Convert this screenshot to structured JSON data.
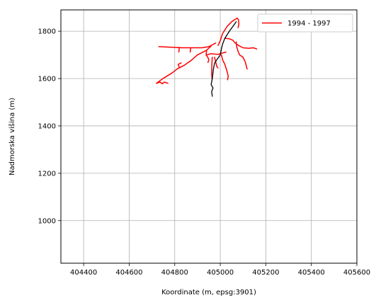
{
  "chart_data": {
    "type": "line",
    "xlabel": "Koordinate (m, epsg:3901)",
    "ylabel": "Nadmorska višina (m)",
    "xlim": [
      404300,
      405600
    ],
    "ylim": [
      820,
      1890
    ],
    "xticks": [
      404400,
      404600,
      404800,
      405000,
      405200,
      405400,
      405600
    ],
    "yticks": [
      1000,
      1200,
      1400,
      1600,
      1800
    ],
    "grid": true,
    "legend": {
      "placement": "top-right",
      "entries": [
        {
          "label": "1994 - 1997",
          "color": "#ff0000"
        }
      ]
    },
    "series": [
      {
        "name": "1994 - 1997",
        "color": "#ff0000",
        "paths": [
          [
            [
              404980,
              1750
            ],
            [
              404950,
              1735
            ],
            [
              404920,
              1730
            ],
            [
              404870,
              1730
            ],
            [
              404830,
              1730
            ],
            [
              404790,
              1732
            ],
            [
              404730,
              1735
            ]
          ],
          [
            [
              404820,
              1732
            ],
            [
              404818,
              1712
            ]
          ],
          [
            [
              404870,
              1730
            ],
            [
              404868,
              1712
            ]
          ],
          [
            [
              404960,
              1738
            ],
            [
              404940,
              1720
            ],
            [
              404900,
              1700
            ],
            [
              404870,
              1675
            ],
            [
              404840,
              1655
            ],
            [
              404810,
              1640
            ],
            [
              404790,
              1625
            ],
            [
              404765,
              1610
            ],
            [
              404745,
              1598
            ],
            [
              404720,
              1580
            ]
          ],
          [
            [
              404720,
              1580
            ],
            [
              404735,
              1585
            ],
            [
              404745,
              1578
            ],
            [
              404755,
              1585
            ],
            [
              404770,
              1580
            ]
          ],
          [
            [
              404820,
              1648
            ],
            [
              404815,
              1660
            ],
            [
              404828,
              1666
            ]
          ],
          [
            [
              404940,
              1720
            ],
            [
              404938,
              1700
            ],
            [
              404945,
              1690
            ],
            [
              404950,
              1680
            ],
            [
              404946,
              1668
            ]
          ],
          [
            [
              404990,
              1740
            ],
            [
              405000,
              1760
            ],
            [
              405010,
              1790
            ],
            [
              405030,
              1820
            ],
            [
              405050,
              1840
            ],
            [
              405065,
              1850
            ],
            [
              405075,
              1855
            ],
            [
              405080,
              1848
            ],
            [
              405082,
              1830
            ],
            [
              405078,
              1815
            ]
          ],
          [
            [
              405020,
              1770
            ],
            [
              405040,
              1768
            ],
            [
              405055,
              1762
            ],
            [
              405065,
              1750
            ],
            [
              405080,
              1740
            ],
            [
              405100,
              1730
            ],
            [
              405125,
              1728
            ],
            [
              405145,
              1730
            ],
            [
              405160,
              1725
            ]
          ],
          [
            [
              405070,
              1755
            ],
            [
              405072,
              1735
            ],
            [
              405078,
              1715
            ],
            [
              405085,
              1700
            ],
            [
              405100,
              1690
            ],
            [
              405110,
              1670
            ],
            [
              405115,
              1650
            ],
            [
              405118,
              1640
            ]
          ],
          [
            [
              405005,
              1700
            ],
            [
              405010,
              1680
            ],
            [
              405020,
              1660
            ],
            [
              405030,
              1630
            ],
            [
              405035,
              1610
            ],
            [
              405032,
              1595
            ]
          ],
          [
            [
              404975,
              1690
            ],
            [
              404980,
              1670
            ],
            [
              404985,
              1650
            ],
            [
              404990,
              1645
            ]
          ],
          [
            [
              404965,
              1690
            ],
            [
              404963,
              1660
            ],
            [
              404962,
              1620
            ],
            [
              404964,
              1598
            ]
          ],
          [
            [
              404940,
              1700
            ],
            [
              404960,
              1705
            ],
            [
              404990,
              1702
            ],
            [
              405010,
              1708
            ],
            [
              405025,
              1712
            ]
          ]
        ]
      },
      {
        "name": "",
        "color": "#000000",
        "paths": [
          [
            [
              404965,
              1600
            ],
            [
              404970,
              1640
            ],
            [
              404975,
              1665
            ],
            [
              404985,
              1680
            ],
            [
              405000,
              1700
            ],
            [
              405005,
              1725
            ],
            [
              405010,
              1745
            ],
            [
              405020,
              1770
            ],
            [
              405040,
              1800
            ],
            [
              405055,
              1820
            ],
            [
              405070,
              1840
            ]
          ],
          [
            [
              404965,
              1600
            ],
            [
              404960,
              1575
            ],
            [
              404968,
              1560
            ],
            [
              404962,
              1545
            ],
            [
              404965,
              1525
            ]
          ]
        ]
      }
    ]
  }
}
